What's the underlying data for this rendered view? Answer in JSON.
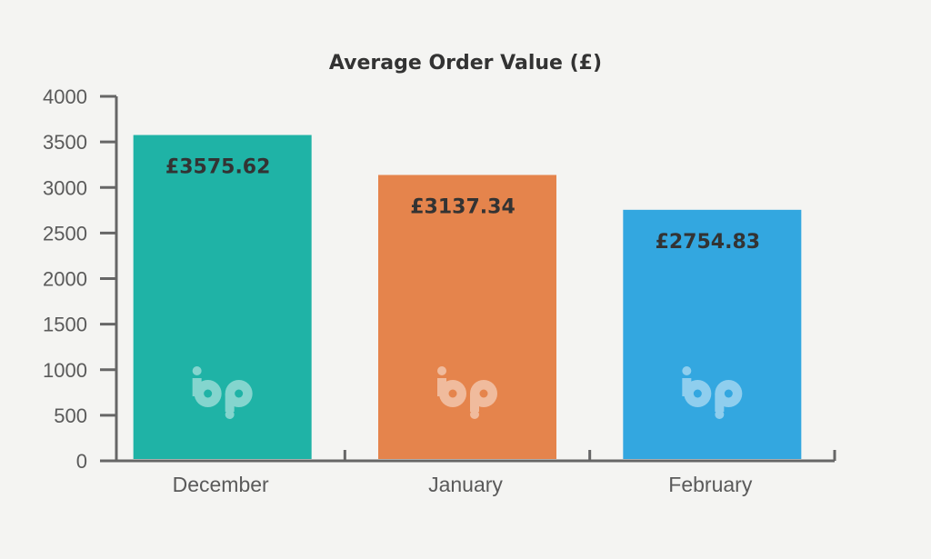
{
  "chart_data": {
    "type": "bar",
    "title": "Average Order Value (£)",
    "xlabel": "",
    "ylabel": "",
    "categories": [
      "December",
      "January",
      "February"
    ],
    "values": [
      3575.62,
      3137.34,
      2754.83
    ],
    "data_labels": [
      "£3575.62",
      "£3137.34",
      "£2754.83"
    ],
    "colors": [
      "#1fb3a6",
      "#e5844c",
      "#33a7e0"
    ],
    "ylim": [
      0,
      4000
    ],
    "yticks": [
      "0",
      "500",
      "1000",
      "1500",
      "2000",
      "2500",
      "3000",
      "3500",
      "4000"
    ],
    "grid": false,
    "legend": "none",
    "watermark_icon": "bp-logo-icon"
  }
}
